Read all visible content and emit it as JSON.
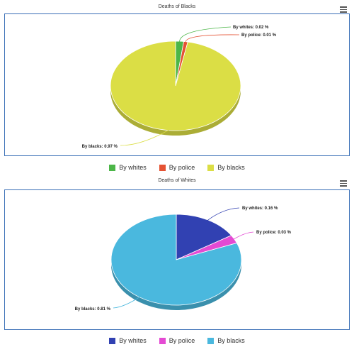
{
  "chart_data": [
    {
      "type": "pie",
      "title": "Deaths of Blacks",
      "categories": [
        "By whites",
        "By police",
        "By blacks"
      ],
      "values": [
        0.02,
        0.01,
        0.97
      ],
      "data_labels": [
        "By whites: 0.02 %",
        "By police: 0.01 %",
        "By blacks: 0.97 %"
      ],
      "colors": [
        "#4cb648",
        "#e55233",
        "#dbde45"
      ],
      "legend": "bottom-center"
    },
    {
      "type": "pie",
      "title": "Deaths of Whites",
      "categories": [
        "By whites",
        "By police",
        "By blacks"
      ],
      "values": [
        0.16,
        0.03,
        0.81
      ],
      "data_labels": [
        "By whites: 0.16 %",
        "By police: 0.03 %",
        "By blacks: 0.81 %"
      ],
      "colors": [
        "#3141b2",
        "#e44ad3",
        "#4ab8de"
      ],
      "legend": "bottom-center"
    }
  ],
  "icons": {
    "menu": "hamburger-menu-icon"
  }
}
